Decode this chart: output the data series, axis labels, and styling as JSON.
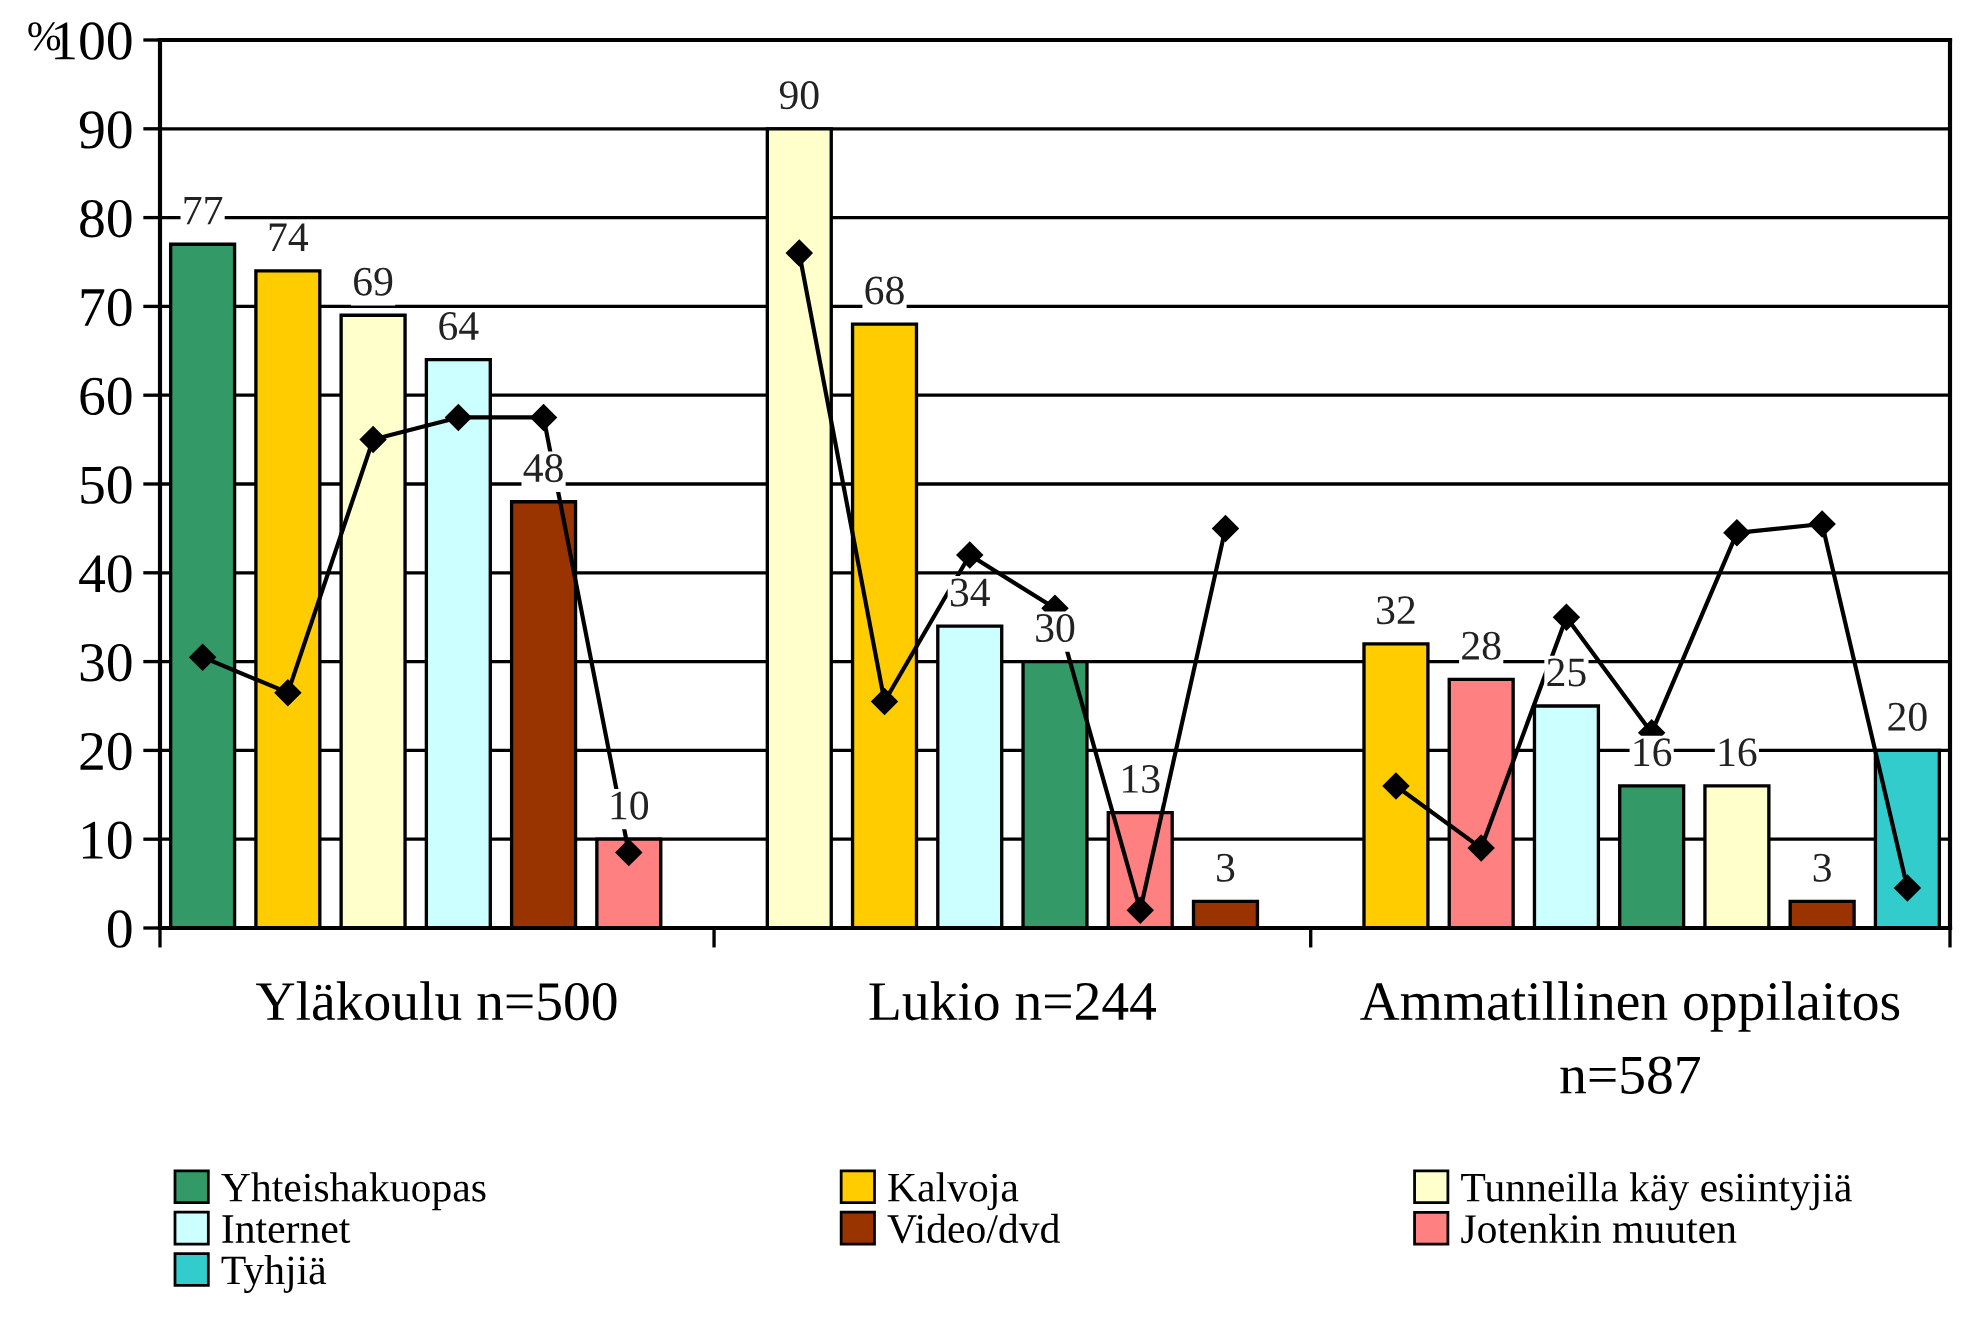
{
  "chart_data": {
    "type": "bar",
    "ylabel": "%",
    "categories": [
      null,
      null,
      null,
      null,
      null,
      null,
      null,
      null,
      null,
      null,
      null,
      null,
      null,
      null,
      null,
      null,
      null,
      null,
      null,
      null,
      null
    ],
    "annotations": [
      "Yläkoulu n=500",
      "Lukio n=244",
      "Ammatillinen oppilaitos n=587"
    ],
    "series": [
      {
        "name": "Yhteishakuopas",
        "color": "#339966",
        "values": [
          77,
          null,
          null,
          null,
          null,
          null,
          null,
          null,
          null,
          null,
          30,
          null,
          null,
          null,
          null,
          null,
          null,
          16,
          null,
          null,
          null
        ],
        "value_labels": [
          "77",
          null,
          null,
          null,
          null,
          null,
          null,
          null,
          null,
          null,
          "30",
          null,
          null,
          null,
          null,
          null,
          null,
          "16",
          null,
          null,
          null
        ]
      },
      {
        "name": "Kalvoja",
        "color": "#ffcc00",
        "values": [
          null,
          74,
          null,
          null,
          null,
          null,
          null,
          null,
          68,
          null,
          null,
          null,
          null,
          null,
          32,
          null,
          null,
          null,
          null,
          null,
          null
        ],
        "value_labels": [
          null,
          "74",
          null,
          null,
          null,
          null,
          null,
          null,
          "68",
          null,
          null,
          null,
          null,
          null,
          "32",
          null,
          null,
          null,
          null,
          null,
          null
        ]
      },
      {
        "name": "Tunneilla käy esiintyjiä",
        "color": "#ffffcc",
        "values": [
          null,
          null,
          69,
          null,
          null,
          null,
          null,
          90,
          null,
          null,
          null,
          null,
          null,
          null,
          null,
          null,
          null,
          null,
          16,
          null,
          null
        ],
        "value_labels": [
          null,
          null,
          "69",
          null,
          null,
          null,
          null,
          "90",
          null,
          null,
          null,
          null,
          null,
          null,
          null,
          null,
          null,
          null,
          "16",
          null,
          null
        ]
      },
      {
        "name": "Internet",
        "color": "#ccffff",
        "values": [
          null,
          null,
          null,
          64,
          null,
          null,
          null,
          null,
          null,
          34,
          null,
          null,
          null,
          null,
          null,
          null,
          25,
          null,
          null,
          null,
          null
        ],
        "value_labels": [
          null,
          null,
          null,
          "64",
          null,
          null,
          null,
          null,
          null,
          "34",
          null,
          null,
          null,
          null,
          null,
          null,
          "25",
          null,
          null,
          null,
          null
        ]
      },
      {
        "name": "Video/dvd",
        "color": "#993300",
        "values": [
          null,
          null,
          null,
          null,
          48,
          null,
          null,
          null,
          null,
          null,
          null,
          null,
          3,
          null,
          null,
          null,
          null,
          null,
          null,
          3,
          null
        ],
        "value_labels": [
          null,
          null,
          null,
          null,
          "48",
          null,
          null,
          null,
          null,
          null,
          null,
          null,
          "3",
          null,
          null,
          null,
          null,
          null,
          null,
          "3",
          null
        ]
      },
      {
        "name": "Jotenkin muuten",
        "color": "#ff8080",
        "values": [
          null,
          null,
          null,
          null,
          null,
          10,
          null,
          null,
          null,
          null,
          null,
          13,
          null,
          null,
          null,
          28,
          null,
          null,
          null,
          null,
          null
        ],
        "value_labels": [
          null,
          null,
          null,
          null,
          null,
          "10",
          null,
          null,
          null,
          null,
          null,
          "13",
          null,
          null,
          null,
          "28",
          null,
          null,
          null,
          null,
          null
        ]
      },
      {
        "name": "Tyhjiä",
        "color": "#33cccc",
        "values": [
          null,
          null,
          null,
          null,
          null,
          null,
          null,
          null,
          null,
          null,
          null,
          null,
          null,
          null,
          null,
          null,
          null,
          null,
          null,
          null,
          20
        ],
        "value_labels": [
          null,
          null,
          null,
          null,
          null,
          null,
          null,
          null,
          null,
          null,
          null,
          null,
          null,
          null,
          null,
          null,
          null,
          null,
          null,
          null,
          "20"
        ]
      },
      {
        "type": "line",
        "color": "#000000",
        "marker": "diamond",
        "line_style": "solid",
        "values": [
          30.5,
          26.5,
          55,
          57.5,
          57.5,
          8.5,
          null,
          76,
          25.5,
          42,
          36,
          2,
          45,
          null,
          16,
          9,
          35,
          22,
          44.5,
          45.5,
          4.5
        ]
      }
    ],
    "ylim": [
      0,
      100
    ],
    "yticks": [
      0,
      10,
      20,
      30,
      40,
      50,
      60,
      70,
      80,
      90,
      100
    ],
    "grid": "y",
    "legend": "bottom"
  }
}
